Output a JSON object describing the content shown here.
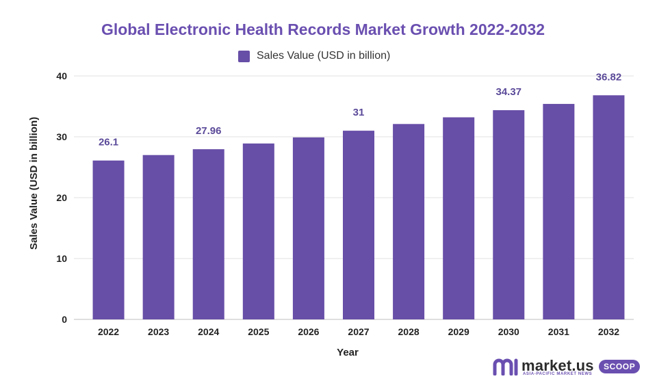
{
  "chart_data": {
    "type": "bar",
    "title": "Global Electronic Health Records Market Growth 2022-2032",
    "xlabel": "Year",
    "ylabel": "Sales Value (USD in billion)",
    "ylim": [
      0,
      40
    ],
    "yticks": [
      0,
      10,
      20,
      30,
      40
    ],
    "grid": true,
    "legend": "top-center",
    "categories": [
      "2022",
      "2023",
      "2024",
      "2025",
      "2026",
      "2027",
      "2028",
      "2029",
      "2030",
      "2031",
      "2032"
    ],
    "series": [
      {
        "name": "Sales Value (USD in billion)",
        "color": "#674ea7",
        "values": [
          26.1,
          27.0,
          27.96,
          28.9,
          29.9,
          31.0,
          32.1,
          33.2,
          34.37,
          35.4,
          36.82
        ],
        "data_labels": [
          "26.1",
          "",
          "27.96",
          "",
          "",
          "31",
          "",
          "",
          "34.37",
          "",
          "36.82"
        ]
      }
    ]
  },
  "branding": {
    "logo_text": "market.us",
    "logo_tagline": "ASIA-PACIFIC MARKET NEWS",
    "logo_badge": "SCOOP"
  },
  "colors": {
    "bar": "#674ea7",
    "title": "#6a4fb0",
    "label": "#5b4a99",
    "grid": "#e2e2e2"
  }
}
